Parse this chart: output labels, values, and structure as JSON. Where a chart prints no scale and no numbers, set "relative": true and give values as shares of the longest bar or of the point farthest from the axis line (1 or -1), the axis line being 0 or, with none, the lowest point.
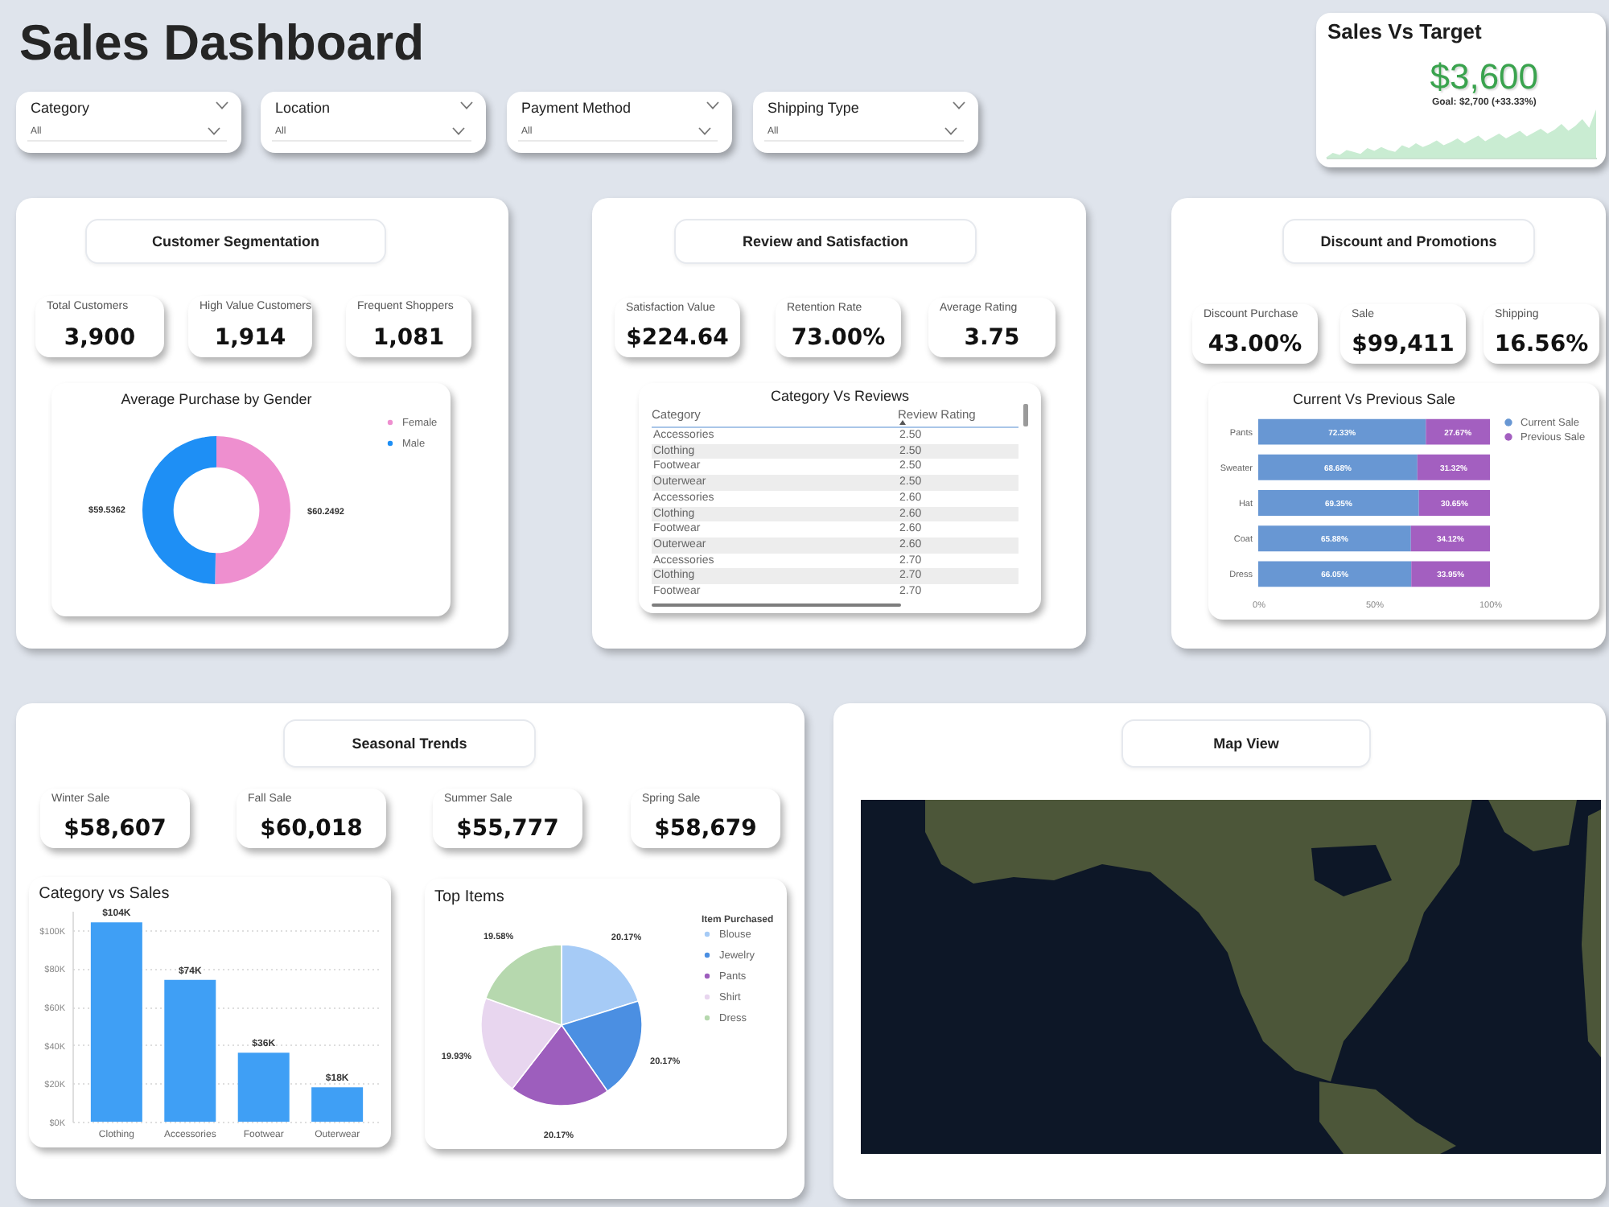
{
  "chart_data": [
    {
      "type": "other",
      "title": "Sales Dashboard",
      "annotations": [
        "Category",
        "All",
        "Location",
        "All",
        "Payment Method",
        "All",
        "Shipping Type",
        "All"
      ]
    },
    {
      "type": "area",
      "title": "Sales Vs Target",
      "relative": true,
      "color": "#c9ecd2",
      "categories": [
        null,
        null,
        null,
        null,
        null,
        null,
        null,
        null,
        null,
        null,
        null,
        null,
        null,
        null,
        null,
        null,
        null,
        null,
        null,
        null,
        null,
        null,
        null,
        null,
        null,
        null,
        null,
        null,
        null,
        null,
        null,
        null,
        null,
        null,
        null,
        null,
        null,
        null,
        null,
        null
      ],
      "values": [
        0,
        0.1,
        0.06,
        0.16,
        0.12,
        0.08,
        0.2,
        0.14,
        0.22,
        0.16,
        0.12,
        0.26,
        0.2,
        0.3,
        0.22,
        0.28,
        0.36,
        0.26,
        0.32,
        0.4,
        0.3,
        0.38,
        0.46,
        0.34,
        0.42,
        0.5,
        0.4,
        0.48,
        0.56,
        0.44,
        0.52,
        0.6,
        0.5,
        0.58,
        0.7,
        0.56,
        0.66,
        0.8,
        0.62,
        1
      ],
      "annotations": [
        "$3,600",
        "Goal: $2,700 (+33.33%)"
      ]
    },
    {
      "type": "other",
      "title": "Customer Segmentation",
      "annotations": [
        "Total Customers",
        "3,900",
        "High Value Customers",
        "1,914",
        "Frequent Shoppers",
        "1,081"
      ]
    },
    {
      "type": "donut",
      "title": "Average Purchase by Gender",
      "categories": [
        "Female",
        "Male"
      ],
      "values": [
        60.2492,
        59.5362
      ],
      "colors": [
        "#ee8fcf",
        "#1e8ff5"
      ],
      "value_labels": [
        "$60.2492",
        "$59.5362"
      ],
      "legend": "right"
    },
    {
      "type": "other",
      "title": "Review and Satisfaction",
      "annotations": [
        "Satisfaction Value",
        "$224.64",
        "Retention Rate",
        "73.00%",
        "Average Rating",
        "3.75"
      ]
    },
    {
      "type": "other",
      "title": "Category Vs Reviews",
      "annotations": [
        "Category",
        "Review Rating",
        "Accessories",
        "2.50",
        "Clothing",
        "2.50",
        "Footwear",
        "2.50",
        "Outerwear",
        "2.50",
        "Accessories",
        "2.60",
        "Clothing",
        "2.60",
        "Footwear",
        "2.60",
        "Outerwear",
        "2.60",
        "Accessories",
        "2.70",
        "Clothing",
        "2.70",
        "Footwear",
        "2.70"
      ]
    },
    {
      "type": "other",
      "title": "Discount and Promotions",
      "annotations": [
        "Discount Purchase",
        "43.00%",
        "Sale",
        "$99,411",
        "Shipping",
        "16.56%"
      ]
    },
    {
      "type": "bar",
      "title": "Current Vs Previous Sale",
      "orientation": "horizontal",
      "stacked": true,
      "categories": [
        "Pants",
        "Sweater",
        "Hat",
        "Coat",
        "Dress"
      ],
      "series": [
        {
          "name": "Current Sale",
          "color": "#6897d3",
          "values": [
            72.33,
            68.68,
            69.35,
            65.88,
            66.05
          ],
          "value_labels": [
            "72.33%",
            "68.68%",
            "69.35%",
            "65.88%",
            "66.05%"
          ]
        },
        {
          "name": "Previous Sale",
          "color": "#a35fc0",
          "values": [
            27.67,
            31.32,
            30.65,
            34.12,
            33.95
          ],
          "value_labels": [
            "27.67%",
            "31.32%",
            "30.65%",
            "34.12%",
            "33.95%"
          ]
        }
      ],
      "xlim": [
        0,
        100
      ],
      "xticks": [
        {
          "value": 0,
          "label": "0%"
        },
        {
          "value": 50,
          "label": "50%"
        },
        {
          "value": 100,
          "label": "100%"
        }
      ],
      "legend": "right"
    },
    {
      "type": "other",
      "title": "Seasonal Trends",
      "annotations": [
        "Winter Sale",
        "$58,607",
        "Fall Sale",
        "$60,018",
        "Summer Sale",
        "$55,777",
        "Spring Sale",
        "$58,679"
      ]
    },
    {
      "type": "bar",
      "title": "Category vs Sales",
      "categories": [
        "Clothing",
        "Accessories",
        "Footwear",
        "Outerwear"
      ],
      "values": [
        104,
        74,
        36,
        18
      ],
      "value_labels": [
        "$104K",
        "$74K",
        "$36K",
        "$18K"
      ],
      "color": "#3f9ff5",
      "ylim": [
        0,
        110
      ],
      "yticks": [
        {
          "value": 0,
          "label": "$0K"
        },
        {
          "value": 20,
          "label": "$20K"
        },
        {
          "value": 40,
          "label": "$40K"
        },
        {
          "value": 60,
          "label": "$60K"
        },
        {
          "value": 80,
          "label": "$80K"
        },
        {
          "value": 100,
          "label": "$100K"
        }
      ],
      "grid": "y"
    },
    {
      "type": "pie",
      "title": "Top Items",
      "categories": [
        "Blouse",
        "Jewelry",
        "Pants",
        "Shirt",
        "Dress"
      ],
      "values": [
        20.17,
        20.17,
        20.17,
        19.93,
        19.58
      ],
      "colors": [
        "#a6cbf6",
        "#4b8fe2",
        "#9d5ebd",
        "#e8d6ef",
        "#b6d8ae"
      ],
      "value_labels": [
        "20.17%",
        "20.17%",
        "20.17%",
        "19.93%",
        "19.58%"
      ],
      "legend": "right",
      "legend_title": "Item Purchased"
    },
    {
      "type": "other",
      "title": "Map View"
    }
  ]
}
